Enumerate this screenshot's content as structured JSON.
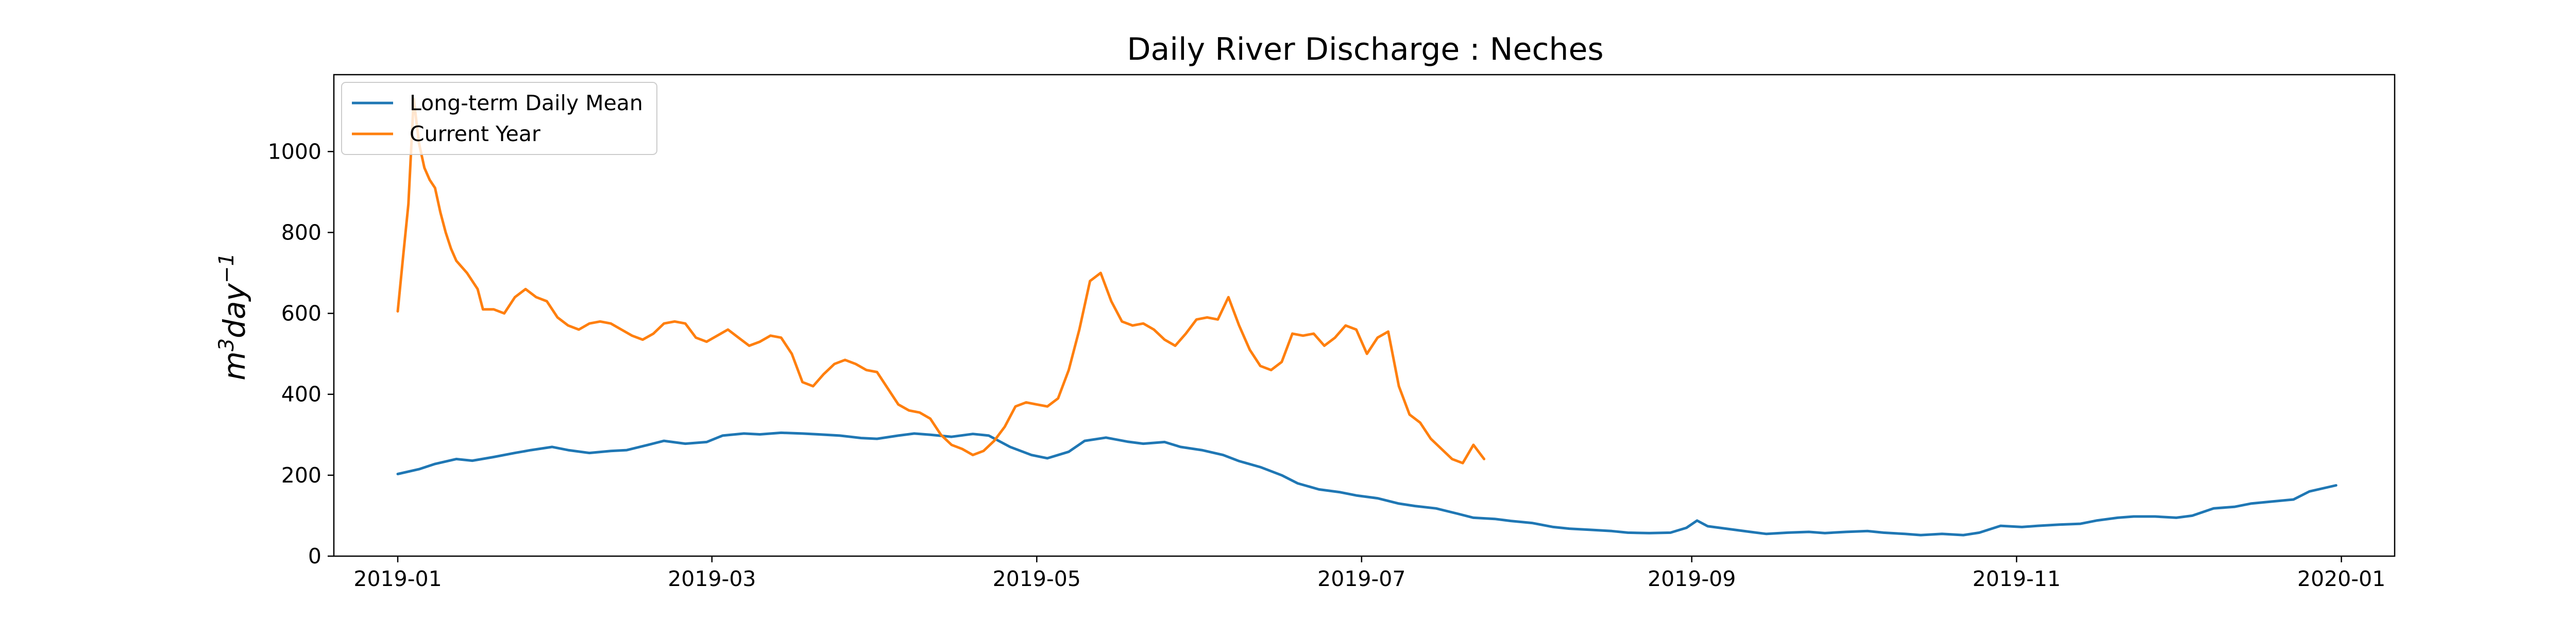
{
  "chart_data": {
    "type": "line",
    "title": "Daily River Discharge : Neches",
    "xlabel": "",
    "ylabel": {
      "base": "m",
      "sup1": "3",
      "mid": "day",
      "sup2": "−1"
    },
    "xlim": [
      "2018-12-20",
      "2020-01-11"
    ],
    "ylim": [
      0,
      1190
    ],
    "x_ticks": [
      "2019-01",
      "2019-03",
      "2019-05",
      "2019-07",
      "2019-09",
      "2019-11",
      "2020-01"
    ],
    "y_ticks": [
      0,
      200,
      400,
      600,
      800,
      1000
    ],
    "grid": false,
    "legend_position": "top-left",
    "colors": {
      "Long-term Daily Mean": "#1f77b4",
      "Current Year": "#ff7f0e"
    },
    "series": [
      {
        "name": "Long-term Daily Mean",
        "x": [
          "2019-01-01",
          "2019-01-05",
          "2019-01-08",
          "2019-01-12",
          "2019-01-15",
          "2019-01-19",
          "2019-01-23",
          "2019-01-26",
          "2019-01-30",
          "2019-02-02",
          "2019-02-06",
          "2019-02-10",
          "2019-02-13",
          "2019-02-17",
          "2019-02-20",
          "2019-02-24",
          "2019-02-28",
          "2019-03-03",
          "2019-03-07",
          "2019-03-10",
          "2019-03-14",
          "2019-03-18",
          "2019-03-21",
          "2019-03-25",
          "2019-03-29",
          "2019-04-01",
          "2019-04-05",
          "2019-04-08",
          "2019-04-11",
          "2019-04-15",
          "2019-04-19",
          "2019-04-22",
          "2019-04-26",
          "2019-04-30",
          "2019-05-03",
          "2019-05-07",
          "2019-05-10",
          "2019-05-14",
          "2019-05-18",
          "2019-05-21",
          "2019-05-25",
          "2019-05-28",
          "2019-06-01",
          "2019-06-05",
          "2019-06-08",
          "2019-06-12",
          "2019-06-16",
          "2019-06-19",
          "2019-06-23",
          "2019-06-27",
          "2019-06-30",
          "2019-07-04",
          "2019-07-08",
          "2019-07-11",
          "2019-07-15",
          "2019-07-19",
          "2019-07-22",
          "2019-07-26",
          "2019-07-29",
          "2019-08-02",
          "2019-08-06",
          "2019-08-09",
          "2019-08-13",
          "2019-08-17",
          "2019-08-20",
          "2019-08-24",
          "2019-08-28",
          "2019-08-31",
          "2019-09-02",
          "2019-09-04",
          "2019-09-08",
          "2019-09-12",
          "2019-09-15",
          "2019-09-19",
          "2019-09-23",
          "2019-09-26",
          "2019-09-30",
          "2019-10-04",
          "2019-10-07",
          "2019-10-11",
          "2019-10-14",
          "2019-10-18",
          "2019-10-22",
          "2019-10-25",
          "2019-10-29",
          "2019-11-02",
          "2019-11-05",
          "2019-11-09",
          "2019-11-13",
          "2019-11-16",
          "2019-11-20",
          "2019-11-23",
          "2019-11-27",
          "2019-12-01",
          "2019-12-04",
          "2019-12-08",
          "2019-12-12",
          "2019-12-15",
          "2019-12-19",
          "2019-12-23",
          "2019-12-26",
          "2019-12-31"
        ],
        "values": [
          203,
          215,
          228,
          240,
          236,
          245,
          255,
          262,
          270,
          262,
          255,
          260,
          262,
          275,
          285,
          278,
          282,
          298,
          303,
          301,
          305,
          303,
          301,
          298,
          292,
          290,
          298,
          303,
          300,
          295,
          302,
          298,
          270,
          250,
          242,
          258,
          285,
          293,
          283,
          278,
          282,
          270,
          262,
          250,
          235,
          220,
          200,
          180,
          165,
          158,
          150,
          143,
          130,
          124,
          118,
          105,
          95,
          92,
          87,
          82,
          72,
          68,
          65,
          62,
          58,
          57,
          58,
          70,
          88,
          74,
          67,
          60,
          55,
          58,
          60,
          57,
          60,
          62,
          58,
          55,
          52,
          55,
          52,
          58,
          75,
          72,
          75,
          78,
          80,
          88,
          95,
          98,
          98,
          95,
          100,
          118,
          122,
          130,
          135,
          140,
          160,
          175
        ]
      },
      {
        "name": "Current Year",
        "x": [
          "2019-01-01",
          "2019-01-02",
          "2019-01-03",
          "2019-01-04",
          "2019-01-05",
          "2019-01-06",
          "2019-01-07",
          "2019-01-08",
          "2019-01-09",
          "2019-01-10",
          "2019-01-11",
          "2019-01-12",
          "2019-01-14",
          "2019-01-16",
          "2019-01-17",
          "2019-01-19",
          "2019-01-21",
          "2019-01-23",
          "2019-01-25",
          "2019-01-27",
          "2019-01-29",
          "2019-01-31",
          "2019-02-02",
          "2019-02-04",
          "2019-02-06",
          "2019-02-08",
          "2019-02-10",
          "2019-02-12",
          "2019-02-14",
          "2019-02-16",
          "2019-02-18",
          "2019-02-20",
          "2019-02-22",
          "2019-02-24",
          "2019-02-26",
          "2019-02-28",
          "2019-03-02",
          "2019-03-04",
          "2019-03-06",
          "2019-03-08",
          "2019-03-10",
          "2019-03-12",
          "2019-03-14",
          "2019-03-16",
          "2019-03-18",
          "2019-03-20",
          "2019-03-22",
          "2019-03-24",
          "2019-03-26",
          "2019-03-28",
          "2019-03-30",
          "2019-04-01",
          "2019-04-03",
          "2019-04-05",
          "2019-04-07",
          "2019-04-09",
          "2019-04-11",
          "2019-04-13",
          "2019-04-15",
          "2019-04-17",
          "2019-04-19",
          "2019-04-21",
          "2019-04-23",
          "2019-04-25",
          "2019-04-27",
          "2019-04-29",
          "2019-05-01",
          "2019-05-03",
          "2019-05-05",
          "2019-05-07",
          "2019-05-09",
          "2019-05-11",
          "2019-05-13",
          "2019-05-15",
          "2019-05-17",
          "2019-05-19",
          "2019-05-21",
          "2019-05-23",
          "2019-05-25",
          "2019-05-27",
          "2019-05-29",
          "2019-05-31",
          "2019-06-02",
          "2019-06-04",
          "2019-06-06",
          "2019-06-08",
          "2019-06-10",
          "2019-06-12",
          "2019-06-14",
          "2019-06-16",
          "2019-06-18",
          "2019-06-20",
          "2019-06-22",
          "2019-06-24",
          "2019-06-26",
          "2019-06-28",
          "2019-06-30",
          "2019-07-02",
          "2019-07-04",
          "2019-07-06",
          "2019-07-08",
          "2019-07-10",
          "2019-07-12",
          "2019-07-14",
          "2019-07-16",
          "2019-07-18",
          "2019-07-20",
          "2019-07-22",
          "2019-07-24"
        ],
        "values": [
          605,
          740,
          870,
          1130,
          1020,
          960,
          930,
          910,
          850,
          800,
          760,
          730,
          700,
          660,
          610,
          610,
          600,
          640,
          660,
          640,
          630,
          590,
          570,
          560,
          575,
          580,
          575,
          560,
          545,
          535,
          550,
          575,
          580,
          575,
          540,
          530,
          545,
          560,
          540,
          520,
          530,
          545,
          540,
          500,
          430,
          420,
          450,
          475,
          485,
          475,
          460,
          455,
          415,
          375,
          360,
          355,
          340,
          300,
          275,
          265,
          250,
          260,
          285,
          320,
          370,
          380,
          375,
          370,
          390,
          460,
          560,
          680,
          700,
          630,
          580,
          570,
          575,
          560,
          535,
          520,
          550,
          585,
          590,
          585,
          640,
          570,
          510,
          470,
          460,
          480,
          550,
          545,
          550,
          520,
          540,
          570,
          560,
          500,
          540,
          555,
          420,
          350,
          330,
          290,
          265,
          240,
          230,
          275,
          240
        ]
      }
    ]
  }
}
